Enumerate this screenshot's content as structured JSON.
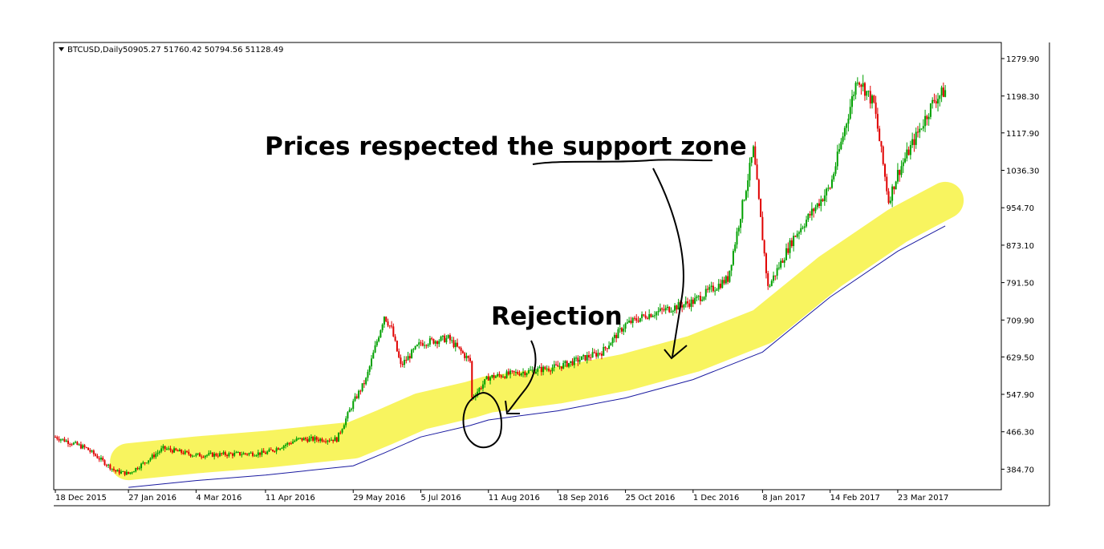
{
  "header": {
    "symbol": "BTCUSD,Daily",
    "ohlc": "50905.27 51760.42 50794.56 51128.49"
  },
  "annotations": {
    "support": "Prices respected the support zone",
    "rejection": "Rejection"
  },
  "colors": {
    "bull": "#00a000",
    "bear": "#e00000",
    "ma_line": "#1a1aa0",
    "zone": "#f5f02a"
  },
  "chart_data": {
    "type": "line",
    "ylim": [
      340,
      1315
    ],
    "y_ticks": [
      "1279.90",
      "1198.30",
      "1117.90",
      "1036.30",
      "954.70",
      "873.10",
      "791.50",
      "709.90",
      "629.50",
      "547.90",
      "466.30",
      "384.70"
    ],
    "x_ticks": [
      "18 Dec 2015",
      "27 Jan 2016",
      "4 Mar 2016",
      "11 Apr 2016",
      "29 May 2016",
      "5 Jul 2016",
      "11 Aug 2016",
      "18 Sep 2016",
      "25 Oct 2016",
      "1 Dec 2016",
      "8 Jan 2017",
      "14 Feb 2017",
      "23 Mar 2017"
    ],
    "price_anchors": [
      {
        "x": "18 Dec 2015",
        "y": 455
      },
      {
        "x": "4 Jan 2016",
        "y": 430
      },
      {
        "x": "20 Jan 2016",
        "y": 380
      },
      {
        "x": "27 Jan 2016",
        "y": 375
      },
      {
        "x": "5 Feb 2016",
        "y": 400
      },
      {
        "x": "15 Feb 2016",
        "y": 430
      },
      {
        "x": "4 Mar 2016",
        "y": 415
      },
      {
        "x": "11 Apr 2016",
        "y": 420
      },
      {
        "x": "29 Apr 2016",
        "y": 450
      },
      {
        "x": "20 May 2016",
        "y": 450
      },
      {
        "x": "29 May 2016",
        "y": 530
      },
      {
        "x": "5 Jun 2016",
        "y": 580
      },
      {
        "x": "15 Jun 2016",
        "y": 720
      },
      {
        "x": "19 Jun 2016",
        "y": 690
      },
      {
        "x": "24 Jun 2016",
        "y": 610
      },
      {
        "x": "5 Jul 2016",
        "y": 660
      },
      {
        "x": "20 Jul 2016",
        "y": 670
      },
      {
        "x": "1 Aug 2016",
        "y": 620
      },
      {
        "x": "2 Aug 2016",
        "y": 540
      },
      {
        "x": "11 Aug 2016",
        "y": 585
      },
      {
        "x": "18 Sep 2016",
        "y": 608
      },
      {
        "x": "12 Oct 2016",
        "y": 640
      },
      {
        "x": "25 Oct 2016",
        "y": 700
      },
      {
        "x": "5 Nov 2016",
        "y": 720
      },
      {
        "x": "1 Dec 2016",
        "y": 750
      },
      {
        "x": "20 Dec 2016",
        "y": 800
      },
      {
        "x": "3 Jan 2017",
        "y": 1080
      },
      {
        "x": "8 Jan 2017",
        "y": 890
      },
      {
        "x": "11 Jan 2017",
        "y": 780
      },
      {
        "x": "25 Jan 2017",
        "y": 890
      },
      {
        "x": "14 Feb 2017",
        "y": 1000
      },
      {
        "x": "1 Mar 2017",
        "y": 1240
      },
      {
        "x": "10 Mar 2017",
        "y": 1180
      },
      {
        "x": "18 Mar 2017",
        "y": 970
      },
      {
        "x": "23 Mar 2017",
        "y": 1030
      },
      {
        "x": "12 Apr 2017",
        "y": 1190
      },
      {
        "x": "18 Apr 2017",
        "y": 1210
      }
    ],
    "moving_average": [
      {
        "x": "27 Jan 2016",
        "y": 345
      },
      {
        "x": "4 Mar 2016",
        "y": 360
      },
      {
        "x": "11 Apr 2016",
        "y": 372
      },
      {
        "x": "29 May 2016",
        "y": 392
      },
      {
        "x": "15 Jun 2016",
        "y": 420
      },
      {
        "x": "5 Jul 2016",
        "y": 455
      },
      {
        "x": "1 Aug 2016",
        "y": 480
      },
      {
        "x": "11 Aug 2016",
        "y": 492
      },
      {
        "x": "18 Sep 2016",
        "y": 512
      },
      {
        "x": "25 Oct 2016",
        "y": 540
      },
      {
        "x": "1 Dec 2016",
        "y": 580
      },
      {
        "x": "8 Jan 2017",
        "y": 640
      },
      {
        "x": "14 Feb 2017",
        "y": 760
      },
      {
        "x": "23 Mar 2017",
        "y": 860
      },
      {
        "x": "18 Apr 2017",
        "y": 915
      }
    ]
  }
}
